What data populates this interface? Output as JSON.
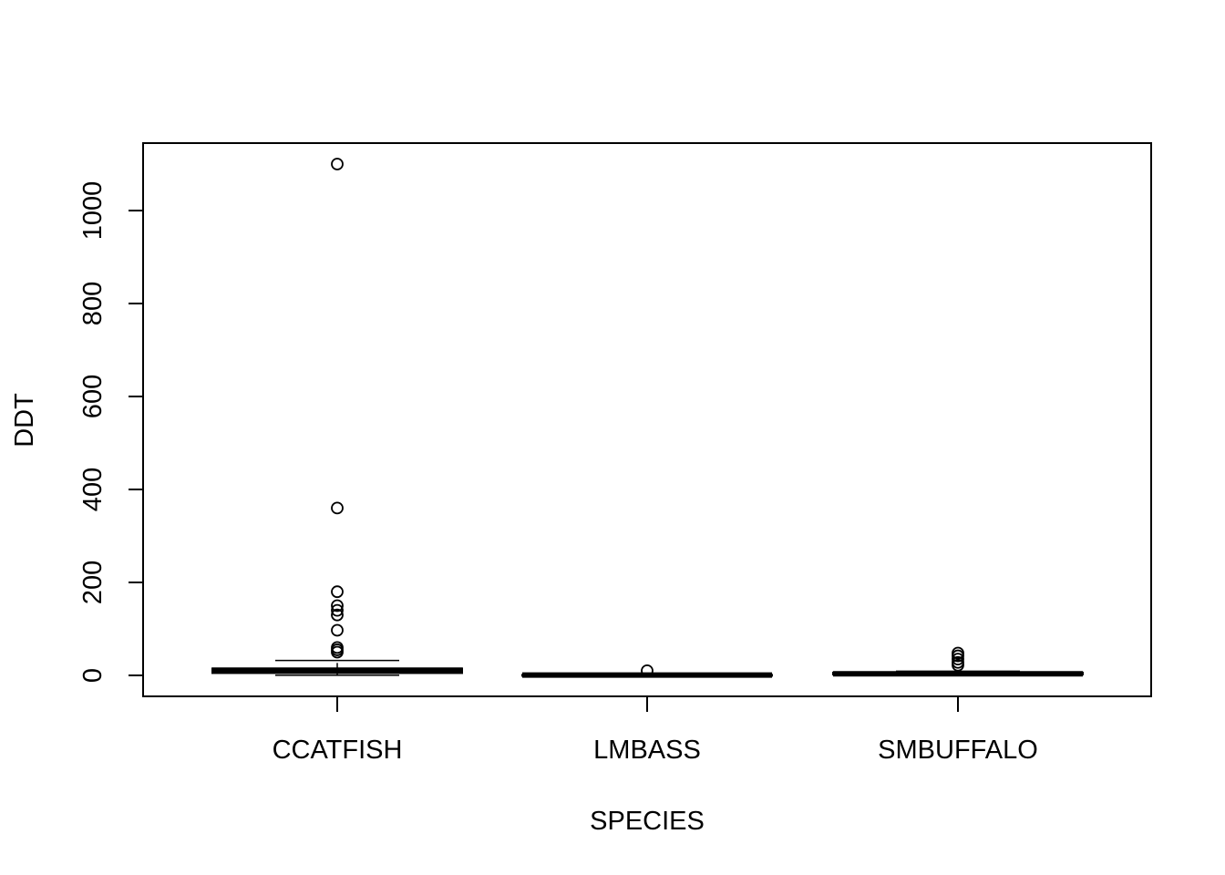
{
  "chart_data": {
    "type": "boxplot",
    "title": "",
    "xlabel": "SPECIES",
    "ylabel": "DDT",
    "ylim": [
      -45,
      1145
    ],
    "yticks": [
      0,
      200,
      400,
      600,
      800,
      1000
    ],
    "ytick_labels": [
      "0",
      "200",
      "400",
      "600",
      "800",
      "1000"
    ],
    "grid": false,
    "legend": "none",
    "categories": [
      "CCATFISH",
      "LMBASS",
      "SMBUFFALO"
    ],
    "boxes": [
      {
        "name": "CCATFISH",
        "whisker_low": 0.2,
        "q1": 5,
        "median": 11,
        "q3": 15,
        "whisker_high": 32,
        "outliers": [
          1100,
          360,
          180,
          150,
          140,
          130,
          97,
          60,
          55,
          50
        ]
      },
      {
        "name": "LMBASS",
        "whisker_low": 0.1,
        "q1": 0.3,
        "median": 0.7,
        "q3": 1.2,
        "whisker_high": 2.5,
        "outliers": [
          10
        ]
      },
      {
        "name": "SMBUFFALO",
        "whisker_low": 0.5,
        "q1": 2,
        "median": 3.5,
        "q3": 6,
        "whisker_high": 9,
        "outliers": [
          48,
          42,
          35,
          28,
          22
        ]
      }
    ]
  }
}
